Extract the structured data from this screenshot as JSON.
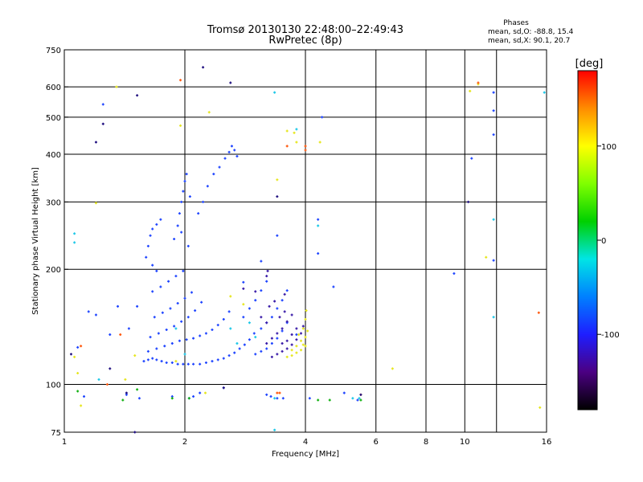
{
  "chart_data": {
    "type": "scatter",
    "title": "Tromsø 20130130 22:48:00–22:49:43",
    "subtitle": "RwPretec (8p)",
    "xlabel": "Frequency [MHz]",
    "ylabel": "Stationary phase Virtual Height [km]",
    "x_scale": "log",
    "y_scale": "log",
    "xlim": [
      1,
      16
    ],
    "ylim": [
      75,
      750
    ],
    "x_ticks": [
      {
        "value": 1,
        "label": "1"
      },
      {
        "value": 2,
        "label": "2"
      },
      {
        "value": 4,
        "label": "4"
      },
      {
        "value": 6,
        "label": "6"
      },
      {
        "value": 8,
        "label": "8"
      },
      {
        "value": 10,
        "label": "10"
      },
      {
        "value": 16,
        "label": "16"
      }
    ],
    "x_gridlines": [
      2,
      4,
      6,
      8,
      10,
      12
    ],
    "y_ticks": [
      {
        "value": 75,
        "label": "75"
      },
      {
        "value": 100,
        "label": "100"
      },
      {
        "value": 200,
        "label": "200"
      },
      {
        "value": 300,
        "label": "300"
      },
      {
        "value": 400,
        "label": "400"
      },
      {
        "value": 500,
        "label": "500"
      },
      {
        "value": 600,
        "label": "600"
      },
      {
        "value": 750,
        "label": "750"
      }
    ],
    "y_gridlines": [
      100,
      200,
      300,
      400,
      500,
      600
    ],
    "grid": true,
    "legend": {
      "title": "Phases",
      "line1": "mean, sd,O: -88.8, 15.4",
      "line2": "mean, sd,X:  90.1, 20.7",
      "placement": "top-right"
    },
    "colorbar": {
      "label": "[deg]",
      "range": [
        -180,
        180
      ],
      "ticks": [
        {
          "value": 100,
          "label": "100"
        },
        {
          "value": 0,
          "label": "0"
        },
        {
          "value": -100,
          "label": "-100"
        }
      ],
      "colormap": [
        "#000000",
        "#4b0082",
        "#1e1eff",
        "#0080ff",
        "#00e5e5",
        "#00d000",
        "#7fff00",
        "#ffff00",
        "#ff8c00",
        "#ff0000"
      ]
    },
    "series": [
      {
        "points": [
          [
            1.58,
            115
          ],
          [
            1.62,
            116
          ],
          [
            1.66,
            117
          ],
          [
            1.7,
            116
          ],
          [
            1.75,
            115
          ],
          [
            1.8,
            114
          ],
          [
            1.86,
            114
          ],
          [
            1.92,
            113
          ],
          [
            1.98,
            113
          ],
          [
            2.04,
            113
          ],
          [
            2.1,
            113
          ],
          [
            2.18,
            113
          ],
          [
            2.26,
            114
          ],
          [
            2.34,
            115
          ],
          [
            2.42,
            116
          ],
          [
            2.5,
            117
          ],
          [
            2.58,
            119
          ],
          [
            2.66,
            121
          ],
          [
            2.74,
            124
          ],
          [
            2.82,
            127
          ],
          [
            2.9,
            131
          ],
          [
            2.98,
            136
          ],
          [
            1.62,
            122
          ],
          [
            1.7,
            124
          ],
          [
            1.78,
            126
          ],
          [
            1.86,
            128
          ],
          [
            1.94,
            130
          ],
          [
            2.02,
            131
          ],
          [
            2.1,
            132
          ],
          [
            2.18,
            134
          ],
          [
            2.26,
            136
          ],
          [
            2.34,
            139
          ],
          [
            2.42,
            143
          ],
          [
            2.5,
            148
          ],
          [
            2.58,
            155
          ],
          [
            1.64,
            133
          ],
          [
            1.72,
            136
          ],
          [
            1.8,
            139
          ],
          [
            1.88,
            142
          ],
          [
            1.96,
            146
          ],
          [
            2.04,
            150
          ],
          [
            2.12,
            156
          ],
          [
            2.2,
            164
          ],
          [
            1.68,
            150
          ],
          [
            1.76,
            154
          ],
          [
            1.84,
            158
          ],
          [
            1.92,
            163
          ],
          [
            2.0,
            168
          ],
          [
            2.08,
            174
          ],
          [
            1.66,
            175
          ],
          [
            1.74,
            180
          ],
          [
            1.82,
            186
          ],
          [
            1.9,
            192
          ],
          [
            1.98,
            198
          ],
          [
            1.62,
            230
          ],
          [
            1.64,
            245
          ],
          [
            1.66,
            255
          ],
          [
            1.7,
            262
          ],
          [
            1.74,
            270
          ],
          [
            1.6,
            215
          ],
          [
            1.66,
            205
          ],
          [
            1.7,
            198
          ],
          [
            1.88,
            240
          ],
          [
            1.92,
            260
          ],
          [
            1.94,
            280
          ],
          [
            1.96,
            300
          ],
          [
            1.98,
            320
          ],
          [
            2.0,
            340
          ],
          [
            2.02,
            355
          ],
          [
            1.96,
            250
          ],
          [
            2.04,
            230
          ],
          [
            2.06,
            310
          ],
          [
            2.16,
            280
          ],
          [
            2.22,
            300
          ],
          [
            2.28,
            330
          ],
          [
            2.36,
            355
          ],
          [
            2.44,
            370
          ],
          [
            2.52,
            390
          ],
          [
            2.58,
            405
          ],
          [
            2.62,
            420
          ],
          [
            2.66,
            410
          ],
          [
            2.7,
            395
          ],
          [
            3.0,
            120
          ],
          [
            3.1,
            122
          ],
          [
            3.2,
            124
          ],
          [
            3.3,
            128
          ],
          [
            3.4,
            132
          ],
          [
            3.5,
            138
          ],
          [
            3.6,
            145
          ],
          [
            3.1,
            140
          ],
          [
            3.2,
            145
          ],
          [
            3.3,
            150
          ],
          [
            3.4,
            158
          ],
          [
            3.5,
            166
          ],
          [
            3.6,
            176
          ],
          [
            2.8,
            150
          ],
          [
            2.9,
            158
          ],
          [
            3.0,
            166
          ],
          [
            3.1,
            176
          ],
          [
            3.2,
            186
          ],
          [
            1.54,
            92
          ],
          [
            1.86,
            93
          ],
          [
            2.05,
            92
          ],
          [
            2.1,
            93
          ],
          [
            3.28,
            93
          ],
          [
            3.2,
            94
          ],
          [
            3.4,
            92
          ],
          [
            3.52,
            92
          ],
          [
            4.1,
            92
          ],
          [
            1.12,
            93
          ],
          [
            1.43,
            94
          ],
          [
            1.15,
            155
          ],
          [
            1.2,
            152
          ],
          [
            1.3,
            135
          ],
          [
            1.45,
            140
          ],
          [
            1.52,
            160
          ],
          [
            3.4,
            245
          ],
          [
            3.1,
            210
          ],
          [
            4.3,
            270
          ],
          [
            4.3,
            220
          ],
          [
            4.7,
            180
          ],
          [
            4.4,
            500
          ],
          [
            10.4,
            390
          ],
          [
            11.8,
            450
          ],
          [
            11.8,
            520
          ],
          [
            11.8,
            580
          ],
          [
            9.4,
            195
          ],
          [
            11.8,
            211
          ],
          [
            1.25,
            540
          ],
          [
            1.36,
            160
          ],
          [
            1.08,
            125
          ],
          [
            2.5,
            98
          ],
          [
            2.8,
            185
          ],
          [
            3.8,
            135
          ],
          [
            2.18,
            95
          ],
          [
            5.0,
            95
          ],
          [
            5.4,
            91
          ]
        ],
        "color": "#2046ff"
      },
      {
        "points": [
          [
            3.3,
            118
          ],
          [
            3.4,
            120
          ],
          [
            3.5,
            122
          ],
          [
            3.6,
            124
          ],
          [
            3.7,
            127
          ],
          [
            3.8,
            131
          ],
          [
            3.9,
            136
          ],
          [
            3.95,
            142
          ],
          [
            3.6,
            130
          ],
          [
            3.7,
            135
          ],
          [
            3.8,
            140
          ],
          [
            3.5,
            128
          ],
          [
            3.2,
            128
          ],
          [
            3.3,
            132
          ],
          [
            3.4,
            136
          ],
          [
            3.5,
            140
          ],
          [
            3.6,
            146
          ],
          [
            3.7,
            152
          ],
          [
            3.55,
            155
          ],
          [
            3.45,
            150
          ],
          [
            3.2,
            145
          ],
          [
            3.1,
            150
          ],
          [
            3.25,
            160
          ],
          [
            3.35,
            165
          ],
          [
            3.2,
            192
          ],
          [
            3.22,
            198
          ],
          [
            2.8,
            178
          ],
          [
            3.0,
            175
          ],
          [
            3.55,
            172
          ]
        ],
        "color": "#3a1ca8"
      },
      {
        "points": [
          [
            3.6,
            118
          ],
          [
            3.7,
            119
          ],
          [
            3.8,
            121
          ],
          [
            3.9,
            123
          ],
          [
            4.0,
            126
          ],
          [
            4.0,
            133
          ],
          [
            3.95,
            140
          ],
          [
            4.0,
            148
          ],
          [
            4.02,
            156
          ],
          [
            3.9,
            130
          ],
          [
            3.8,
            126
          ],
          [
            3.7,
            123
          ],
          [
            3.85,
            135
          ],
          [
            3.95,
            127
          ],
          [
            4.05,
            138
          ],
          [
            1.5,
            119
          ],
          [
            1.42,
            103
          ],
          [
            1.08,
            107
          ],
          [
            1.06,
            118
          ],
          [
            1.35,
            600
          ],
          [
            1.1,
            88
          ],
          [
            1.95,
            475
          ],
          [
            1.2,
            298
          ],
          [
            2.3,
            515
          ],
          [
            3.75,
            455
          ],
          [
            3.8,
            430
          ],
          [
            4.35,
            430
          ],
          [
            10.3,
            585
          ],
          [
            10.8,
            610
          ],
          [
            11.3,
            215
          ],
          [
            15.4,
            87
          ],
          [
            6.6,
            110
          ],
          [
            2.6,
            170
          ],
          [
            2.8,
            162
          ],
          [
            1.9,
            115
          ],
          [
            3.4,
            343
          ],
          [
            3.6,
            460
          ],
          [
            2.25,
            95
          ]
        ],
        "color": "#e6e620"
      },
      {
        "points": [
          [
            1.06,
            248
          ],
          [
            1.06,
            235
          ],
          [
            2.9,
            145
          ],
          [
            3.0,
            133
          ],
          [
            2.6,
            140
          ],
          [
            2.7,
            128
          ],
          [
            3.8,
            465
          ],
          [
            3.35,
            580
          ],
          [
            4.3,
            260
          ],
          [
            1.9,
            140
          ],
          [
            2.0,
            120
          ],
          [
            11.8,
            270
          ],
          [
            11.8,
            150
          ],
          [
            15.8,
            580
          ],
          [
            3.35,
            76
          ],
          [
            1.22,
            103
          ],
          [
            5.45,
            92
          ],
          [
            5.25,
            92
          ],
          [
            3.35,
            92
          ]
        ],
        "color": "#1ec8e8"
      },
      {
        "points": [
          [
            1.95,
            625
          ],
          [
            1.28,
            100
          ],
          [
            1.38,
            135
          ],
          [
            3.6,
            420
          ],
          [
            3.4,
            95
          ],
          [
            5.5,
            94
          ],
          [
            3.45,
            95
          ],
          [
            4.0,
            420
          ],
          [
            4.0,
            410
          ],
          [
            15.3,
            154
          ],
          [
            10.8,
            615
          ],
          [
            1.1,
            126
          ]
        ],
        "color": "#ff5a10"
      },
      {
        "points": [
          [
            1.52,
            97
          ],
          [
            4.3,
            91
          ],
          [
            4.6,
            91
          ],
          [
            1.4,
            91
          ],
          [
            1.86,
            92
          ],
          [
            5.5,
            91
          ],
          [
            1.08,
            96
          ],
          [
            2.05,
            92
          ]
        ],
        "color": "#10b010"
      },
      {
        "points": [
          [
            1.25,
            480
          ],
          [
            1.52,
            570
          ],
          [
            2.22,
            675
          ],
          [
            2.6,
            615
          ],
          [
            3.4,
            310
          ],
          [
            1.04,
            120
          ],
          [
            1.2,
            430
          ],
          [
            1.43,
            95
          ],
          [
            10.2,
            300
          ],
          [
            2.5,
            98
          ],
          [
            1.5,
            75
          ],
          [
            5.5,
            94
          ],
          [
            1.3,
            110
          ]
        ],
        "color": "#201080"
      }
    ]
  }
}
